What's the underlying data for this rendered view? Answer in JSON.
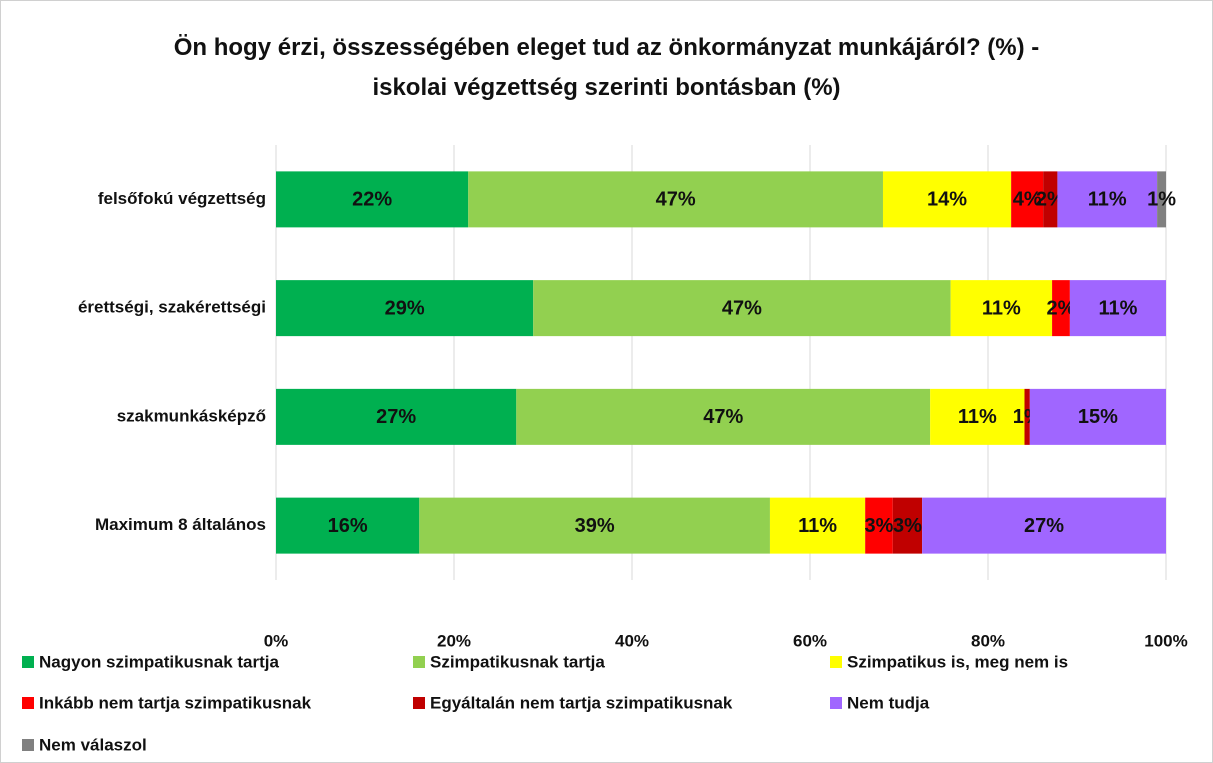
{
  "chart_data": {
    "type": "stacked_barh",
    "title": "Ön hogy érzi, összességében eleget tud az önkormányzat munkájáról? (%) - iskolai végzettség szerinti bontásban (%)",
    "categories": [
      "felsőfokú végzettség",
      "érettségi, szakérettségi",
      "szakmunkásképző",
      "Maximum 8 általános"
    ],
    "series": [
      {
        "name": "Nagyon szimpatikusnak tartja",
        "color": "#00b050",
        "values": [
          21.6,
          28.9,
          27.0,
          16.1
        ],
        "value_labels": [
          "22%",
          "29%",
          "27%",
          "16%"
        ]
      },
      {
        "name": "Szimpatikusnak tartja",
        "color": "#92d050",
        "values": [
          46.6,
          46.9,
          46.5,
          39.4
        ],
        "value_labels": [
          "47%",
          "47%",
          "47%",
          "39%"
        ]
      },
      {
        "name": "Szimpatikus is, meg nem is",
        "color": "#ffff00",
        "values": [
          14.4,
          11.4,
          10.6,
          10.7
        ],
        "value_labels": [
          "14%",
          "11%",
          "11%",
          "11%"
        ]
      },
      {
        "name": "Inkább nem tartja szimpatikusnak",
        "color": "#ff0000",
        "values": [
          3.6,
          2.0,
          null,
          3.1
        ],
        "value_labels": [
          "4%",
          "2%",
          null,
          "3%"
        ]
      },
      {
        "name": "Egyáltalán nem tartja szimpatikusnak",
        "color": "#c00000",
        "values": [
          1.6,
          null,
          0.6,
          3.3
        ],
        "value_labels": [
          "2%",
          null,
          "1%",
          "3%"
        ]
      },
      {
        "name": "Nem tudja",
        "color": "#a066ff",
        "values": [
          11.2,
          10.8,
          15.3,
          27.4
        ],
        "value_labels": [
          "11%",
          "11%",
          "15%",
          "27%"
        ]
      },
      {
        "name": "Nem válaszol",
        "color": "#808080",
        "values": [
          1.0,
          null,
          null,
          null
        ],
        "value_labels": [
          "1%",
          null,
          null,
          null
        ]
      }
    ],
    "xlim": [
      0,
      100
    ],
    "xticks": [
      {
        "value": 0,
        "label": "0%"
      },
      {
        "value": 20,
        "label": "20%"
      },
      {
        "value": 40,
        "label": "40%"
      },
      {
        "value": 60,
        "label": "60%"
      },
      {
        "value": 80,
        "label": "80%"
      },
      {
        "value": 100,
        "label": "100%"
      }
    ],
    "grid": true,
    "legend": "bottom"
  }
}
